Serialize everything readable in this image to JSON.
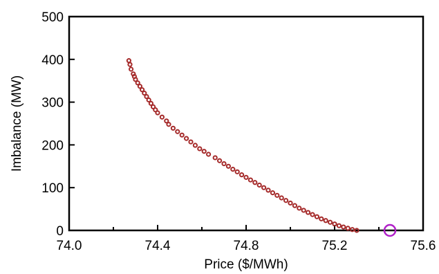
{
  "chart_data": {
    "type": "scatter",
    "title": "",
    "xlabel": "Price ($/MWh)",
    "ylabel": "Imbalance (MW)",
    "xlim": [
      74.0,
      75.6
    ],
    "ylim": [
      0,
      500
    ],
    "xticks": [
      "74.0",
      "74.4",
      "74.8",
      "75.2",
      "75.6"
    ],
    "yticks": [
      "0",
      "100",
      "200",
      "300",
      "400",
      "500"
    ],
    "xtick_values": [
      74.0,
      74.4,
      74.8,
      75.2,
      75.6
    ],
    "ytick_values": [
      0,
      100,
      200,
      300,
      400,
      500
    ],
    "grid": false,
    "series": [
      {
        "color": "#a52a2a",
        "x": [
          74.27,
          74.275,
          74.28,
          74.29,
          74.295,
          74.3,
          74.31,
          74.32,
          74.33,
          74.34,
          74.35,
          74.36,
          74.37,
          74.38,
          74.39,
          74.4,
          74.42,
          74.44,
          74.45,
          74.47,
          74.49,
          74.51,
          74.53,
          74.55,
          74.57,
          74.59,
          74.61,
          74.63,
          74.66,
          74.68,
          74.7,
          74.72,
          74.74,
          74.76,
          74.78,
          74.8,
          74.82,
          74.84,
          74.86,
          74.88,
          74.9,
          74.92,
          74.94,
          74.96,
          74.98,
          75.0,
          75.02,
          75.04,
          75.06,
          75.08,
          75.1,
          75.12,
          75.14,
          75.16,
          75.18,
          75.2,
          75.22,
          75.24,
          75.26,
          75.28,
          75.3
        ],
        "y": [
          397,
          388,
          377,
          366,
          360,
          353,
          345,
          337,
          329,
          321,
          313,
          305,
          297,
          289,
          282,
          275,
          265,
          256,
          248,
          239,
          231,
          223,
          215,
          207,
          199,
          191,
          185,
          178,
          170,
          163,
          156,
          150,
          143,
          137,
          130,
          124,
          118,
          112,
          106,
          100,
          94,
          88,
          82,
          76,
          70,
          64,
          58,
          52,
          47,
          42,
          37,
          32,
          27,
          23,
          19,
          15,
          11,
          8,
          5,
          2,
          0
        ]
      }
    ],
    "marker": {
      "x": 75.45,
      "y": 0,
      "color": "#b020c8"
    }
  }
}
